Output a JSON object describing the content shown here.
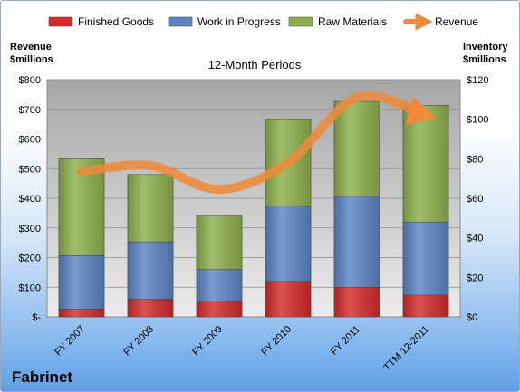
{
  "chart_data": {
    "type": "bar",
    "stacked": true,
    "title": "12-Month Periods",
    "company": "Fabrinet",
    "left_axis_label": [
      "Revenue",
      "$millions"
    ],
    "right_axis_label": [
      "Inventory",
      "$millions"
    ],
    "categories": [
      "FY 2007",
      "FY 2008",
      "FY 2009",
      "FY 2010",
      "FY 2011",
      "TTM 12-2011"
    ],
    "series": [
      {
        "name": "Finished Goods",
        "axis": "right",
        "color": "#d42a2a",
        "values": [
          4,
          9,
          8,
          18,
          15,
          11
        ]
      },
      {
        "name": "Work in Progress",
        "axis": "right",
        "color": "#5b84c4",
        "values": [
          27,
          29,
          16,
          38,
          46,
          37
        ]
      },
      {
        "name": "Raw Materials",
        "axis": "right",
        "color": "#8cb04c",
        "values": [
          49,
          34,
          27,
          44,
          48,
          59
        ]
      }
    ],
    "line_series": {
      "name": "Revenue",
      "axis": "left",
      "color": "#ee8a3a",
      "values": [
        490,
        510,
        430,
        520,
        740,
        680
      ]
    },
    "left_axis": {
      "min": 0,
      "max": 800,
      "step": 100,
      "ticks": [
        "$-",
        "$100",
        "$200",
        "$300",
        "$400",
        "$500",
        "$600",
        "$700",
        "$800"
      ]
    },
    "right_axis": {
      "min": 0,
      "max": 120,
      "step": 20,
      "ticks": [
        "$0",
        "$20",
        "$40",
        "$60",
        "$80",
        "$100",
        "$120"
      ]
    },
    "legend_position": "top",
    "grid": true
  }
}
